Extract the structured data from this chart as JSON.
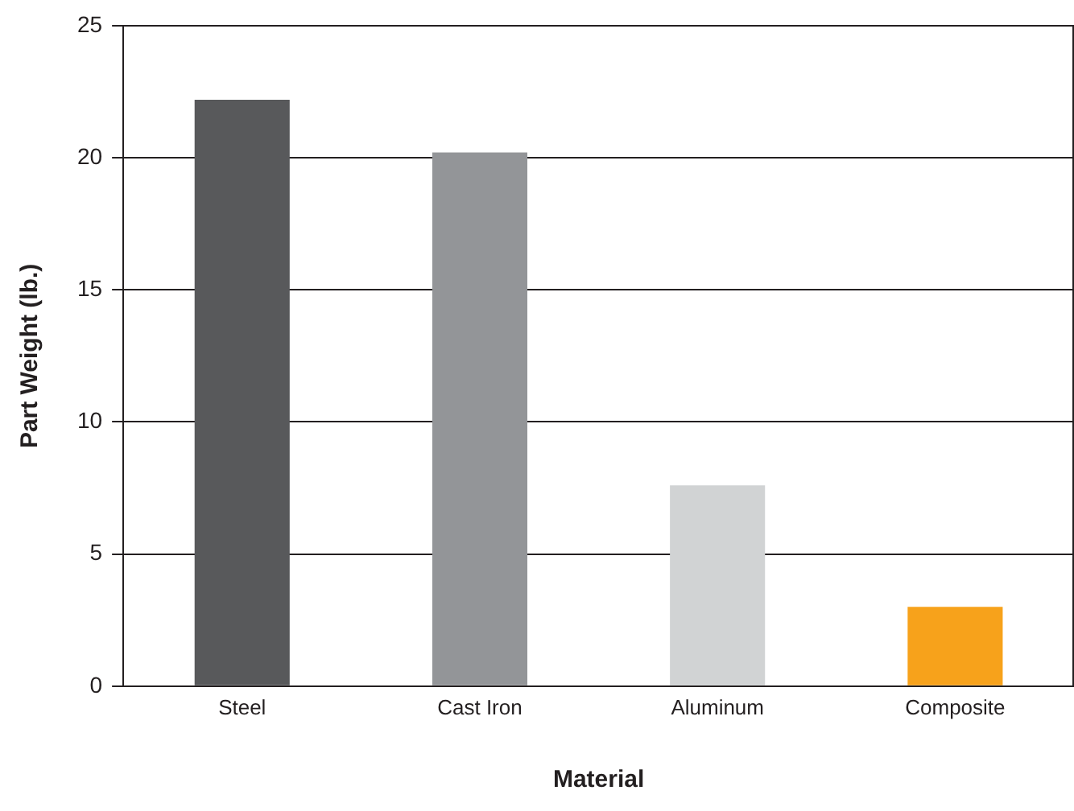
{
  "chart_data": {
    "type": "bar",
    "xlabel": "Material",
    "ylabel": "Part Weight (lb.)",
    "categories": [
      "Steel",
      "Cast Iron",
      "Aluminum",
      "Composite"
    ],
    "values": [
      22.2,
      20.2,
      7.6,
      3.0
    ],
    "colors": [
      "#58595b",
      "#939598",
      "#d1d3d4",
      "#f7a21b"
    ],
    "ylim": [
      0,
      25
    ],
    "yticks": [
      0,
      5,
      10,
      15,
      20,
      25
    ],
    "grid": "y",
    "legend": false
  }
}
